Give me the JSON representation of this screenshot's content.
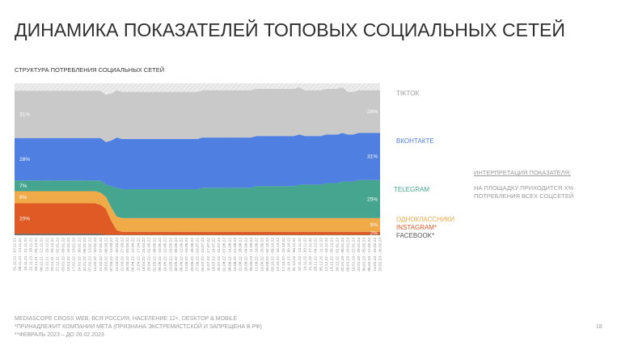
{
  "title": "ДИНАМИКА ПОКАЗАТЕЛЕЙ ТОПОВЫХ СОЦИАЛЬНЫХ СЕТЕЙ",
  "subtitle": "СТРУКТУРА ПОТРЕБЛЕНИЯ СОЦИАЛЬНЫХ СЕТЕЙ",
  "interpretation": {
    "heading": "ИНТЕРПРЕТАЦИЯ ПОКАЗАТЕЛЯ:",
    "line1": "НА ПЛОЩАДКУ ПРИХОДИТСЯ  X%",
    "line2": "ПОТРЕБЛЕНИЯ ВСЕХ СОЦСЕТЕЙ"
  },
  "footnotes": [
    "MEDIASCOPE CROSS WEB, ВСЯ РОССИЯ, НАСЕЛЕНИЕ 12+, DESKTOP & MOBILE",
    "*ПРИНАДЛЕЖИТ КОМПАНИИ МЕТА (ПРИЗНАНА ЭКСТРЕМИСТСКОЙ И ЗАПРЕЩЕНА В РФ)",
    "**ФЕВРАЛЬ 2023 – ДО 26.02.2023"
  ],
  "page_number": "18",
  "chart_data": {
    "type": "area",
    "stacked": true,
    "normalized_percent": true,
    "ylim": [
      0,
      100
    ],
    "grid": false,
    "legend_placement": "right",
    "categories": [
      "01.11.21 - 07.11.21",
      "08.11.21 - 14.11.21",
      "15.11.21 - 21.11.21",
      "22.11.21 - 28.11.21",
      "29.11.21 - 05.12.21",
      "06.12.21 - 12.12.21",
      "13.12.21 - 19.12.21",
      "20.12.21 - 26.12.21",
      "27.12.21 - 02.01.22",
      "03.01.22 - 09.01.22",
      "10.01.22 - 16.01.22",
      "17.01.22 - 23.01.22",
      "24.01.22 - 30.01.22",
      "31.01.22 - 06.02.22",
      "07.02.22 - 13.02.22",
      "14.02.22 - 20.02.22",
      "21.02.22 - 27.02.22",
      "28.02.22 - 06.03.22",
      "07.03.22 - 13.03.22",
      "14.03.22 - 20.03.22",
      "21.03.22 - 27.03.22",
      "28.03.22 - 03.04.22",
      "04.04.22 - 10.04.22",
      "11.04.22 - 17.04.22",
      "18.04.22 - 24.04.22",
      "25.04.22 - 01.05.22",
      "02.05.22 - 08.05.22",
      "09.05.22 - 15.05.22",
      "16.05.22 - 22.05.22",
      "23.05.22 - 29.05.22",
      "30.05.22 - 05.06.22",
      "06.06.22 - 12.06.22",
      "13.06.22 - 19.06.22",
      "20.06.22 - 26.06.22",
      "27.06.22 - 03.07.22",
      "04.07.22 - 10.07.22",
      "11.07.22 - 17.07.22",
      "18.07.22 - 24.07.22",
      "25.07.22 - 31.07.22",
      "01.08.22 - 07.08.22",
      "08.08.22 - 14.08.22",
      "15.08.22 - 21.08.22",
      "22.08.22 - 28.08.22",
      "29.08.22 - 04.09.22",
      "05.09.22 - 11.09.22",
      "12.09.22 - 18.09.22",
      "19.09.22 - 25.09.22",
      "26.09.22 - 02.10.22",
      "03.10.22 - 09.10.22",
      "10.10.22 - 16.10.22",
      "17.10.22 - 23.10.22",
      "24.10.22 - 30.10.22",
      "31.10.22 - 06.11.22",
      "07.11.22 - 13.11.22",
      "14.11.22 - 20.11.22",
      "21.11.22 - 27.11.22",
      "28.11.22 - 04.12.22",
      "05.12.22 - 11.12.22",
      "12.12.22 - 18.12.22",
      "19.12.22 - 25.12.22",
      "26.12.22 - 01.01.23",
      "02.01.23 - 08.01.23",
      "09.01.23 - 15.01.23",
      "16.01.23 - 22.01.23",
      "23.01.23 - 29.01.23",
      "30.01.23 - 05.02.23",
      "06.02.23 - 12.02.23",
      "13.02.23 - 19.02.23",
      "20.02.23 - 26.02.23"
    ],
    "series": [
      {
        "name": "FACEBOOK*",
        "color": "#6b6b6b",
        "values": [
          1,
          1,
          1,
          1,
          1,
          1,
          1,
          1,
          1,
          1,
          1,
          1,
          1,
          1,
          1,
          1,
          1,
          0.3,
          0.3,
          0.3,
          0.3,
          0.3,
          0.3,
          0.3,
          0.3,
          0.3,
          0.3,
          0.3,
          0.3,
          0.3,
          0.3,
          0.3,
          0.3,
          0.3,
          0.3,
          0.3,
          0.3,
          0.3,
          0.3,
          0.3,
          0.3,
          0.3,
          0.3,
          0.3,
          0.3,
          0.3,
          0.3,
          0.3,
          0.3,
          0.3,
          0.3,
          0.3,
          0.3,
          0.3,
          0.3,
          0.3,
          0.3,
          0.3,
          0.3,
          0.3,
          0.3,
          0.3,
          0.3,
          0.3,
          0.3,
          0.3,
          0.3,
          0.3,
          0.3
        ]
      },
      {
        "name": "INSTAGRAM*",
        "color": "#e05a26",
        "values": [
          20,
          20,
          20,
          20,
          20,
          20,
          20,
          20,
          20,
          20,
          20,
          20,
          20,
          20,
          20,
          20,
          19,
          17,
          9,
          3,
          2,
          2,
          2,
          2,
          2,
          2,
          2,
          2,
          2,
          2,
          2,
          2,
          2,
          2,
          2,
          2,
          2,
          2,
          2,
          2,
          2,
          2,
          2,
          2,
          2,
          2,
          2,
          2,
          2,
          2,
          2,
          2,
          2,
          2,
          2,
          2,
          2,
          2,
          2,
          2,
          2,
          2,
          2,
          2,
          2,
          2,
          2,
          2,
          2
        ]
      },
      {
        "name": "ОДНОКЛАССНИКИ",
        "color": "#f0aa48",
        "values": [
          8,
          8,
          8,
          8,
          8,
          8,
          8,
          8,
          8,
          8,
          8,
          8,
          8,
          8,
          8,
          8,
          8,
          8,
          9,
          9,
          9,
          9,
          9,
          9,
          9,
          9,
          9,
          9,
          9,
          9,
          9,
          9,
          9,
          9,
          9,
          9,
          9,
          9,
          9,
          9,
          9,
          9,
          9,
          9,
          9,
          9,
          9,
          9,
          9,
          9,
          9,
          9,
          9,
          9,
          9,
          9,
          9,
          9,
          9,
          9,
          9,
          9,
          9,
          9,
          9,
          9,
          9,
          9,
          9
        ]
      },
      {
        "name": "TELEGRAM",
        "color": "#45a58f",
        "values": [
          7,
          7,
          7,
          7,
          7,
          7,
          7,
          7,
          7,
          7,
          7,
          7,
          7,
          7,
          7,
          7,
          8,
          8,
          14,
          19,
          19,
          19,
          19,
          19,
          19,
          19,
          19,
          19,
          19,
          19,
          19,
          19,
          19,
          19,
          19,
          20,
          20,
          20,
          20,
          20,
          20,
          20,
          20,
          20,
          20,
          21,
          21,
          21,
          21,
          21,
          21,
          21,
          21,
          22,
          22,
          22,
          22,
          22,
          23,
          23,
          23,
          24,
          24,
          24,
          25,
          25,
          25,
          25,
          25
        ]
      },
      {
        "name": "ВКОНТАКТЕ",
        "color": "#4f7fe0",
        "values": [
          28,
          28,
          28,
          28,
          28,
          28,
          28,
          28,
          28,
          28,
          28,
          28,
          28,
          28,
          28,
          28,
          28,
          28,
          30,
          33,
          33,
          33,
          33,
          33,
          33,
          33,
          33,
          33,
          33,
          33,
          33,
          33,
          33,
          33,
          33,
          33,
          33,
          33,
          33,
          33,
          33,
          33,
          33,
          33,
          33,
          33,
          33,
          33,
          33,
          33,
          33,
          33,
          33,
          33,
          32,
          32,
          32,
          32,
          32,
          32,
          32,
          32,
          31,
          31,
          31,
          31,
          31,
          31,
          31
        ]
      },
      {
        "name": "TIKTOK",
        "color": "#c9c9c9",
        "values": [
          31,
          31,
          31,
          31,
          31,
          31,
          31,
          31,
          31,
          31,
          31,
          31,
          31,
          31,
          31,
          31,
          31,
          31,
          31,
          31,
          31,
          31,
          31,
          31,
          31,
          31,
          31,
          31,
          31,
          31,
          31,
          31,
          31,
          31,
          31,
          31,
          31,
          31,
          31,
          31,
          31,
          31,
          31,
          31,
          31,
          31,
          31,
          31,
          31,
          31,
          31,
          31,
          31,
          31,
          30,
          30,
          30,
          30,
          30,
          30,
          30,
          30,
          28,
          28,
          28,
          28,
          28,
          28,
          28
        ]
      }
    ],
    "remainder_color": "#e8e8e8",
    "start_labels": [
      "",
      "20%",
      "8%",
      "7%",
      "28%",
      "31%"
    ],
    "end_labels": [
      "",
      "2%",
      "9%",
      "25%",
      "31%",
      "28%"
    ]
  }
}
